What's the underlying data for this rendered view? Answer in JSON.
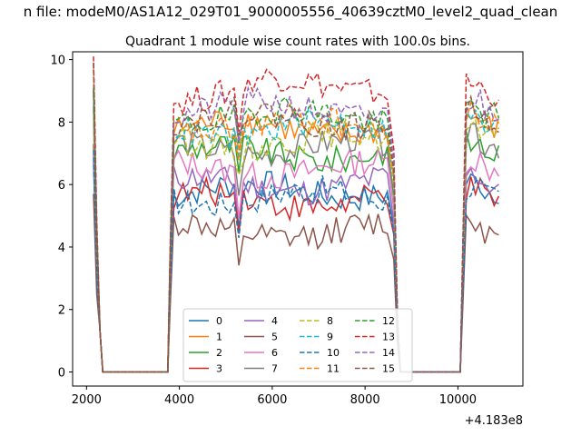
{
  "figure": {
    "suptitle": "n file: modeM0/AS1A12_029T01_9000005556_40639cztM0_level2_quad_clean",
    "offset_label": "+4.183e8"
  },
  "chart_data": {
    "type": "line",
    "title": "Quadrant 1 module wise count rates with 100.0s bins.",
    "xlabel": "",
    "ylabel": "",
    "xlim": [
      1700,
      11400
    ],
    "ylim": [
      -0.45,
      10.25
    ],
    "x_offset": 418300000,
    "x_ticks": [
      2000,
      4000,
      6000,
      8000,
      10000
    ],
    "x_tick_labels": [
      "2000",
      "4000",
      "6000",
      "8000",
      "10000"
    ],
    "y_ticks": [
      0,
      2,
      4,
      6,
      8,
      10
    ],
    "y_tick_labels": [
      "0",
      "2",
      "4",
      "6",
      "8",
      "10"
    ],
    "grid": false,
    "legend_position": "lower-center",
    "legend_columns": 4,
    "segments": [
      {
        "start": 2150,
        "end": 2350
      },
      {
        "start": 3750,
        "end": 8700
      },
      {
        "start": 10050,
        "end": 10950
      }
    ],
    "series": [
      {
        "name": "0",
        "level": 5.8,
        "color": "#1f77b4",
        "style": "solid"
      },
      {
        "name": "1",
        "level": 7.8,
        "color": "#ff7f0e",
        "style": "solid"
      },
      {
        "name": "2",
        "level": 7.0,
        "color": "#2ca02c",
        "style": "solid"
      },
      {
        "name": "3",
        "level": 5.5,
        "color": "#d62728",
        "style": "solid"
      },
      {
        "name": "4",
        "level": 6.0,
        "color": "#9467bd",
        "style": "solid"
      },
      {
        "name": "5",
        "level": 4.5,
        "color": "#8c564b",
        "style": "solid"
      },
      {
        "name": "6",
        "level": 6.5,
        "color": "#e377c2",
        "style": "solid"
      },
      {
        "name": "7",
        "level": 7.2,
        "color": "#7f7f7f",
        "style": "solid"
      },
      {
        "name": "8",
        "level": 7.4,
        "color": "#bcbd22",
        "style": "dashed"
      },
      {
        "name": "9",
        "level": 7.8,
        "color": "#17becf",
        "style": "dashed"
      },
      {
        "name": "10",
        "level": 5.6,
        "color": "#1f77b4",
        "style": "dashed"
      },
      {
        "name": "11",
        "level": 7.9,
        "color": "#ff7f0e",
        "style": "dashed"
      },
      {
        "name": "12",
        "level": 8.2,
        "color": "#2ca02c",
        "style": "dashed"
      },
      {
        "name": "13",
        "level": 8.9,
        "color": "#d62728",
        "style": "dashed"
      },
      {
        "name": "14",
        "level": 8.4,
        "color": "#9467bd",
        "style": "dashed"
      },
      {
        "name": "15",
        "level": 8.1,
        "color": "#8c564b",
        "style": "dashed"
      }
    ]
  }
}
